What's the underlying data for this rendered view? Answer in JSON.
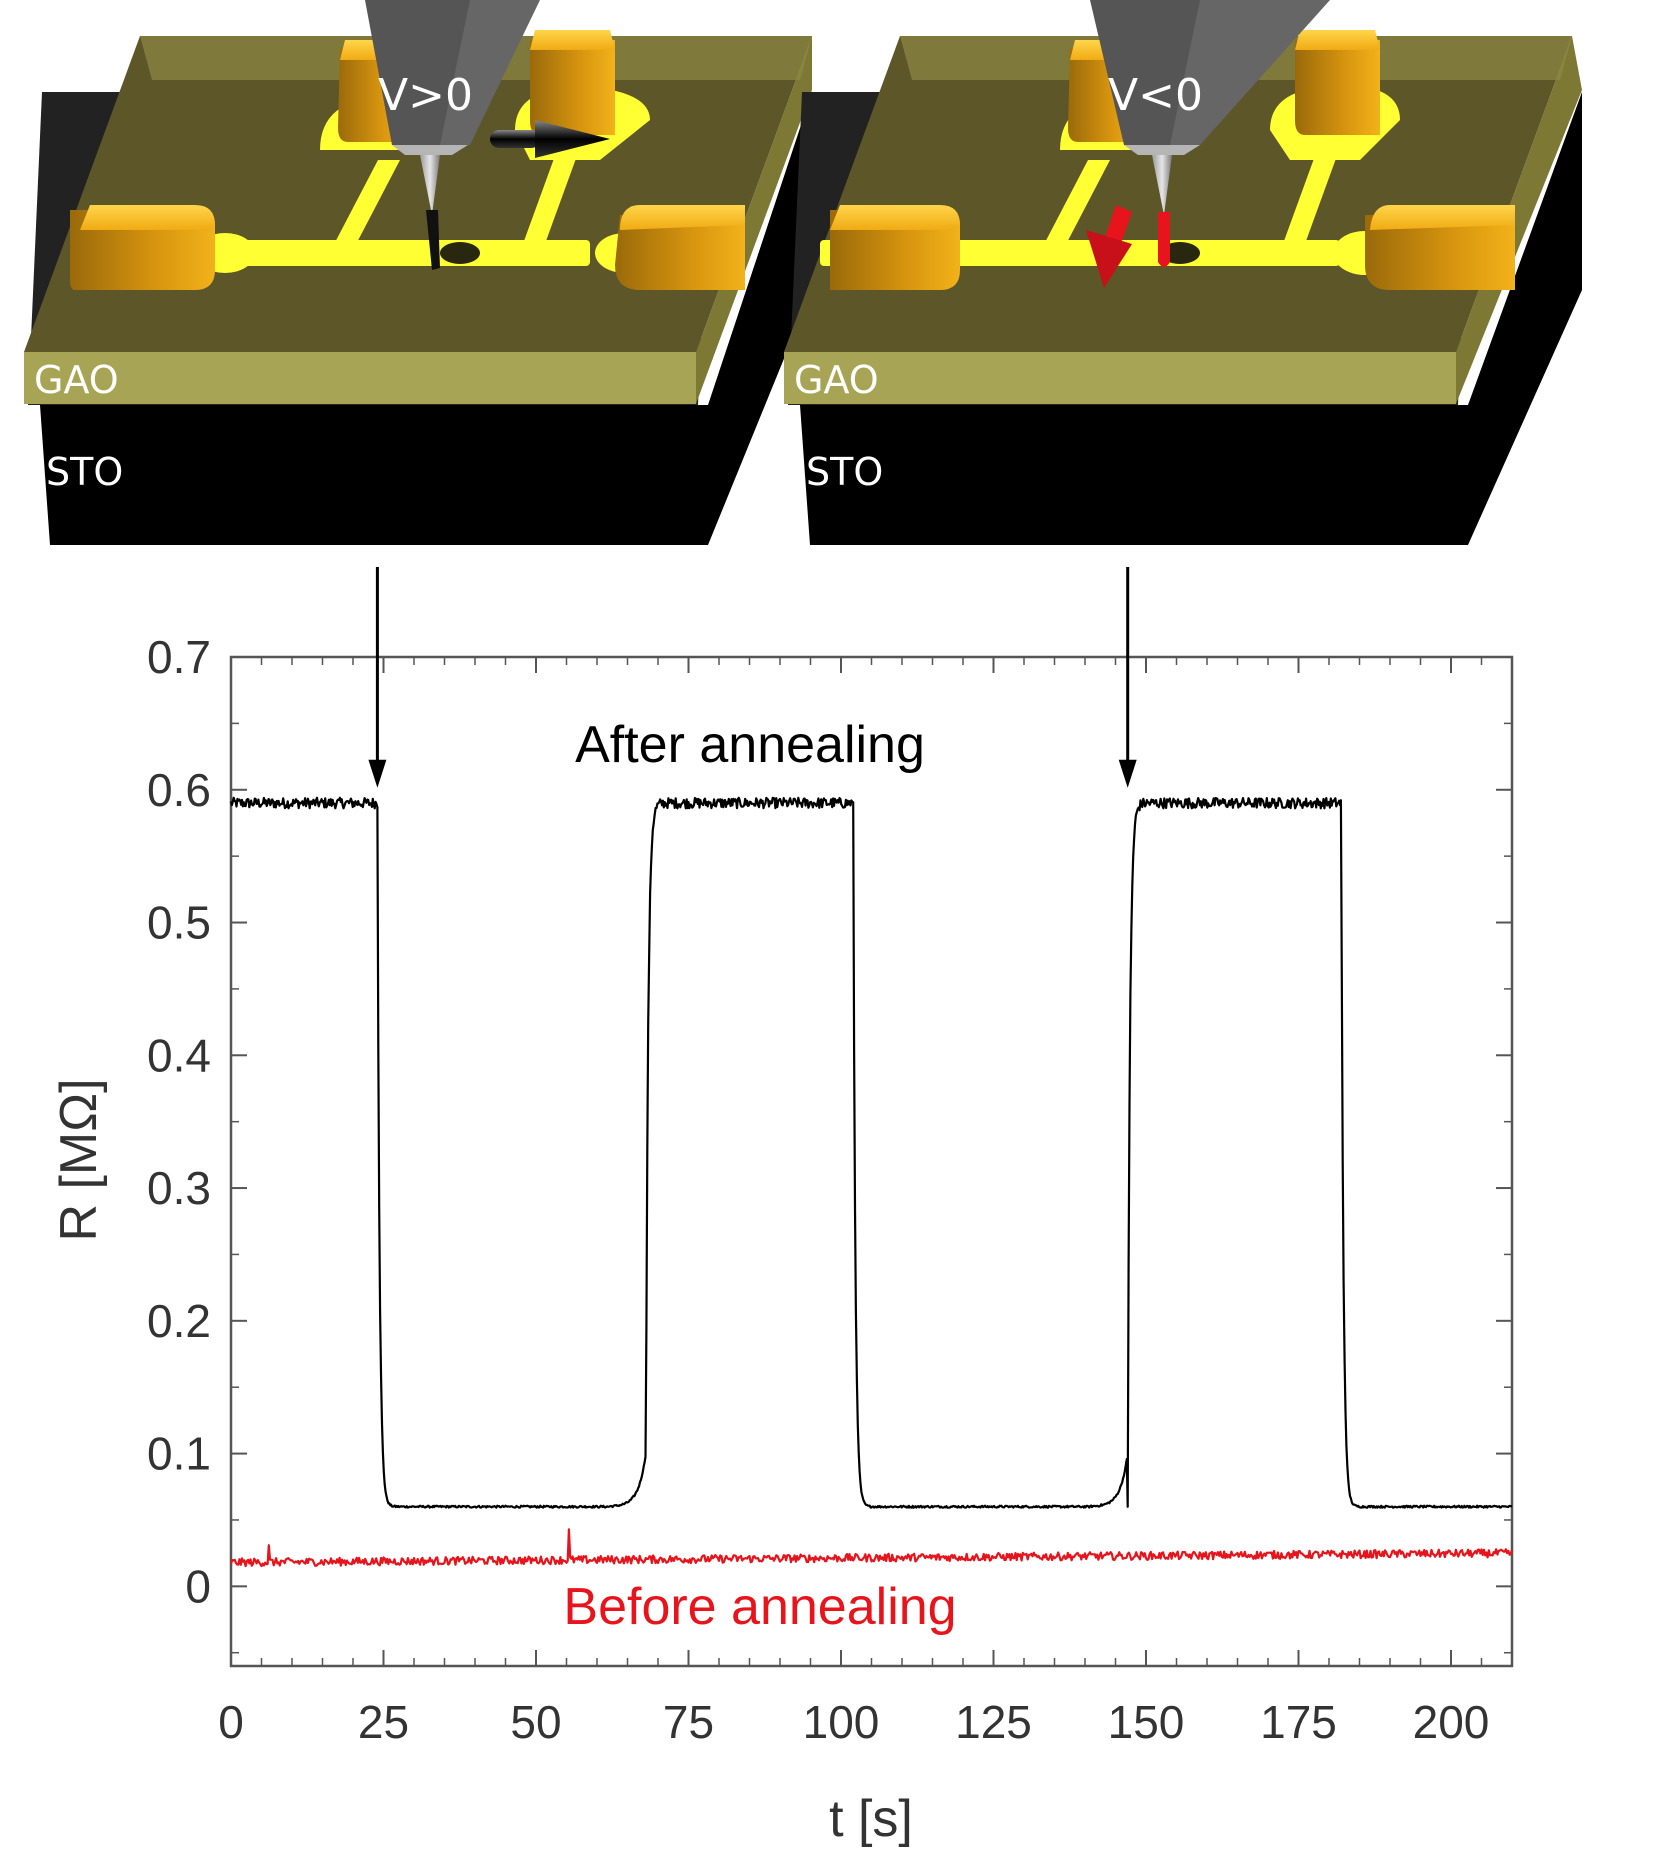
{
  "diagram": {
    "left_panel": {
      "layer_top": "GAO",
      "layer_bottom": "STO",
      "tip_label": "V>0"
    },
    "right_panel": {
      "layer_top": "GAO",
      "layer_bottom": "STO",
      "tip_label": "V<0"
    }
  },
  "chart_data": {
    "type": "line",
    "xlabel": "t [s]",
    "ylabel": "R [MΩ]",
    "xlim": [
      0,
      210
    ],
    "ylim": [
      -0.06,
      0.7
    ],
    "xticks": [
      0,
      25,
      50,
      75,
      100,
      125,
      150,
      175,
      200
    ],
    "yticks": [
      0,
      0.1,
      0.2,
      0.3,
      0.4,
      0.5,
      0.6,
      0.7
    ],
    "markers_t": [
      24,
      147
    ],
    "annotations": [
      {
        "text": "After annealing",
        "color": "#000000"
      },
      {
        "text": "Before annealing",
        "color": "#e8141c"
      }
    ],
    "series": [
      {
        "name": "After annealing",
        "color": "#000000",
        "high": 0.59,
        "low": 0.06,
        "segments": [
          {
            "t_start": 0,
            "t_end": 24,
            "state": "high"
          },
          {
            "t_start": 24,
            "t_end": 68,
            "state": "low"
          },
          {
            "t_start": 68,
            "t_end": 102,
            "state": "high"
          },
          {
            "t_start": 102,
            "t_end": 147,
            "state": "low"
          },
          {
            "t_start": 147,
            "t_end": 182,
            "state": "high"
          },
          {
            "t_start": 182,
            "t_end": 210,
            "state": "low"
          }
        ]
      },
      {
        "name": "Before annealing",
        "color": "#e8141c",
        "t": [
          0,
          210
        ],
        "values": [
          0.018,
          0.025
        ]
      }
    ]
  }
}
